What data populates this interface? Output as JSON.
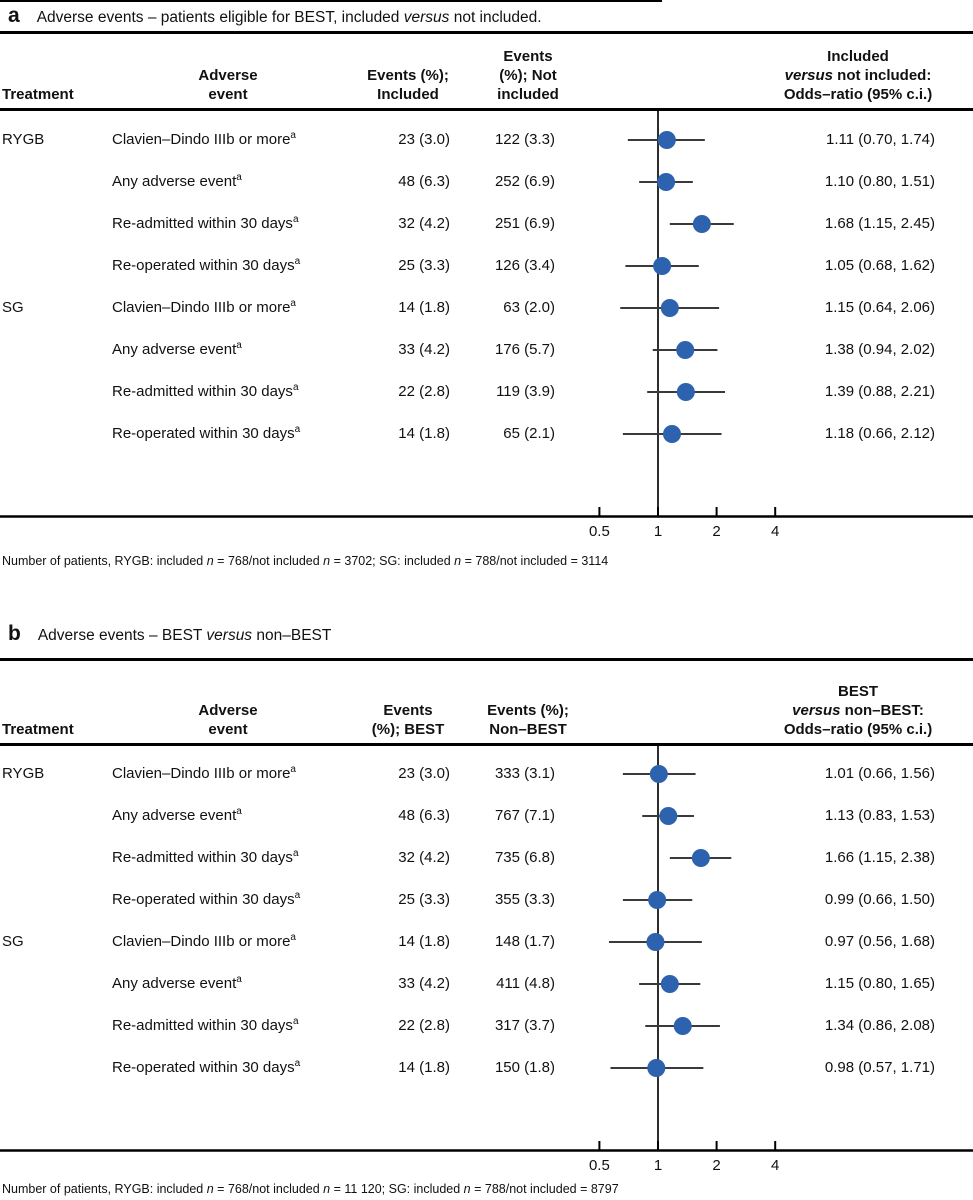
{
  "figure": {
    "background": "#ffffff",
    "dot_color": "#2d63ae",
    "ci_line_color": "#3a3a3a",
    "rule_color": "#000000",
    "text_color": "#111111"
  },
  "axis": {
    "ticks": [
      "0.5",
      "1",
      "2",
      "4"
    ],
    "tick_values": [
      0.5,
      1,
      2,
      4
    ],
    "reference_value": 1
  },
  "panels": [
    {
      "label": "a",
      "title_segments": [
        {
          "t": "Adverse events – patients eligible for BEST, included "
        },
        {
          "t": "versus",
          "i": true
        },
        {
          "t": " not included."
        }
      ],
      "columns": {
        "treatment": [
          [
            {
              "t": "Treatment"
            }
          ]
        ],
        "adverse": [
          [
            {
              "t": "Adverse"
            }
          ],
          [
            {
              "t": "event"
            }
          ]
        ],
        "col3": [
          [
            {
              "t": "Events (%);"
            }
          ],
          [
            {
              "t": "Included"
            }
          ]
        ],
        "col4": [
          [
            {
              "t": "Events"
            }
          ],
          [
            {
              "t": "(%); Not"
            }
          ],
          [
            {
              "t": "included"
            }
          ]
        ],
        "or": [
          [
            {
              "t": "Included"
            }
          ],
          [
            {
              "t": "versus",
              "i": true
            },
            {
              "t": " not included:"
            }
          ],
          [
            {
              "t": "Odds–ratio (95% c.i.)"
            }
          ]
        ]
      },
      "rows": [
        {
          "treatment": "RYGB",
          "event": [
            {
              "t": "Clavien–Dindo IIIb or more"
            },
            {
              "t": "a",
              "sup": true
            }
          ],
          "included": "23 (3.0)",
          "other": "122 (3.3)",
          "or_text": "1.11 (0.70, 1.74)",
          "or": 1.11,
          "lo": 0.7,
          "hi": 1.74
        },
        {
          "treatment": "",
          "event": [
            {
              "t": "Any adverse event"
            },
            {
              "t": "a",
              "sup": true
            }
          ],
          "included": "48 (6.3)",
          "other": "252 (6.9)",
          "or_text": "1.10 (0.80, 1.51)",
          "or": 1.1,
          "lo": 0.8,
          "hi": 1.51
        },
        {
          "treatment": "",
          "event": [
            {
              "t": "Re-admitted within 30 days"
            },
            {
              "t": "a",
              "sup": true
            }
          ],
          "included": "32 (4.2)",
          "other": "251 (6.9)",
          "or_text": "1.68 (1.15, 2.45)",
          "or": 1.68,
          "lo": 1.15,
          "hi": 2.45
        },
        {
          "treatment": "",
          "event": [
            {
              "t": "Re-operated within 30 days"
            },
            {
              "t": "a",
              "sup": true
            }
          ],
          "included": "25 (3.3)",
          "other": "126 (3.4)",
          "or_text": "1.05 (0.68, 1.62)",
          "or": 1.05,
          "lo": 0.68,
          "hi": 1.62
        },
        {
          "treatment": "SG",
          "event": [
            {
              "t": "Clavien–Dindo IIIb or more"
            },
            {
              "t": "a",
              "sup": true
            }
          ],
          "included": "14 (1.8)",
          "other": "63 (2.0)",
          "or_text": "1.15 (0.64, 2.06)",
          "or": 1.15,
          "lo": 0.64,
          "hi": 2.06
        },
        {
          "treatment": "",
          "event": [
            {
              "t": "Any adverse event"
            },
            {
              "t": "a",
              "sup": true
            }
          ],
          "included": "33 (4.2)",
          "other": "176 (5.7)",
          "or_text": "1.38 (0.94, 2.02)",
          "or": 1.38,
          "lo": 0.94,
          "hi": 2.02
        },
        {
          "treatment": "",
          "event": [
            {
              "t": "Re-admitted within 30 days"
            },
            {
              "t": "a",
              "sup": true
            }
          ],
          "included": "22 (2.8)",
          "other": "119 (3.9)",
          "or_text": "1.39 (0.88, 2.21)",
          "or": 1.39,
          "lo": 0.88,
          "hi": 2.21
        },
        {
          "treatment": "",
          "event": [
            {
              "t": "Re-operated within 30 days"
            },
            {
              "t": "a",
              "sup": true
            }
          ],
          "included": "14 (1.8)",
          "other": "65 (2.1)",
          "or_text": "1.18 (0.66, 2.12)",
          "or": 1.18,
          "lo": 0.66,
          "hi": 2.12
        }
      ],
      "footnote_segments": [
        {
          "t": "Number of patients, RYGB: included "
        },
        {
          "t": "n",
          "i": true
        },
        {
          "t": " = 768/not included "
        },
        {
          "t": "n",
          "i": true
        },
        {
          "t": " = 3702; SG: included "
        },
        {
          "t": "n",
          "i": true
        },
        {
          "t": " = 788/not included = 3114"
        }
      ]
    },
    {
      "label": "b",
      "title_segments": [
        {
          "t": "Adverse events – BEST "
        },
        {
          "t": "versus",
          "i": true
        },
        {
          "t": " non–BEST"
        }
      ],
      "columns": {
        "treatment": [
          [
            {
              "t": "Treatment"
            }
          ]
        ],
        "adverse": [
          [
            {
              "t": "Adverse"
            }
          ],
          [
            {
              "t": "event"
            }
          ]
        ],
        "col3": [
          [
            {
              "t": "Events"
            }
          ],
          [
            {
              "t": "(%); BEST"
            }
          ]
        ],
        "col4": [
          [
            {
              "t": "Events (%);"
            }
          ],
          [
            {
              "t": "Non–BEST"
            }
          ]
        ],
        "or": [
          [
            {
              "t": "BEST"
            }
          ],
          [
            {
              "t": "versus",
              "i": true
            },
            {
              "t": " non–BEST:"
            }
          ],
          [
            {
              "t": "Odds–ratio (95% c.i.)"
            }
          ]
        ]
      },
      "rows": [
        {
          "treatment": "RYGB",
          "event": [
            {
              "t": "Clavien–Dindo IIIb or more"
            },
            {
              "t": "a",
              "sup": true
            }
          ],
          "included": "23 (3.0)",
          "other": "333 (3.1)",
          "or_text": "1.01 (0.66, 1.56)",
          "or": 1.01,
          "lo": 0.66,
          "hi": 1.56
        },
        {
          "treatment": "",
          "event": [
            {
              "t": "Any adverse event"
            },
            {
              "t": "a",
              "sup": true
            }
          ],
          "included": "48 (6.3)",
          "other": "767 (7.1)",
          "or_text": "1.13 (0.83, 1.53)",
          "or": 1.13,
          "lo": 0.83,
          "hi": 1.53
        },
        {
          "treatment": "",
          "event": [
            {
              "t": "Re-admitted within 30 days"
            },
            {
              "t": "a",
              "sup": true
            }
          ],
          "included": "32 (4.2)",
          "other": "735 (6.8)",
          "or_text": "1.66 (1.15, 2.38)",
          "or": 1.66,
          "lo": 1.15,
          "hi": 2.38
        },
        {
          "treatment": "",
          "event": [
            {
              "t": "Re-operated within 30 days"
            },
            {
              "t": "a",
              "sup": true
            }
          ],
          "included": "25 (3.3)",
          "other": "355 (3.3)",
          "or_text": "0.99 (0.66, 1.50)",
          "or": 0.99,
          "lo": 0.66,
          "hi": 1.5
        },
        {
          "treatment": "SG",
          "event": [
            {
              "t": "Clavien–Dindo IIIb or more"
            },
            {
              "t": "a",
              "sup": true
            }
          ],
          "included": "14 (1.8)",
          "other": "148 (1.7)",
          "or_text": "0.97 (0.56, 1.68)",
          "or": 0.97,
          "lo": 0.56,
          "hi": 1.68
        },
        {
          "treatment": "",
          "event": [
            {
              "t": "Any adverse event"
            },
            {
              "t": "a",
              "sup": true
            }
          ],
          "included": "33 (4.2)",
          "other": "411 (4.8)",
          "or_text": "1.15 (0.80, 1.65)",
          "or": 1.15,
          "lo": 0.8,
          "hi": 1.65
        },
        {
          "treatment": "",
          "event": [
            {
              "t": "Re-admitted within 30 days"
            },
            {
              "t": "a",
              "sup": true
            }
          ],
          "included": "22 (2.8)",
          "other": "317 (3.7)",
          "or_text": "1.34 (0.86, 2.08)",
          "or": 1.34,
          "lo": 0.86,
          "hi": 2.08
        },
        {
          "treatment": "",
          "event": [
            {
              "t": "Re-operated within 30 days"
            },
            {
              "t": "a",
              "sup": true
            }
          ],
          "included": "14 (1.8)",
          "other": "150 (1.8)",
          "or_text": "0.98 (0.57, 1.71)",
          "or": 0.98,
          "lo": 0.57,
          "hi": 1.71
        }
      ],
      "footnote_segments": [
        {
          "t": "Number of patients, RYGB: included "
        },
        {
          "t": "n",
          "i": true
        },
        {
          "t": " = 768/not included "
        },
        {
          "t": "n",
          "i": true
        },
        {
          "t": " = 11 120; SG: included "
        },
        {
          "t": "n",
          "i": true
        },
        {
          "t": " = 788/not included = 8797"
        }
      ]
    }
  ],
  "chart_data": [
    {
      "type": "scatter",
      "subtype": "forest-plot",
      "title": "Adverse events – patients eligible for BEST, included versus not included.",
      "x_scale": "log",
      "x_ticks": [
        0.5,
        1,
        2,
        4
      ],
      "reference_line": 1,
      "legend_position": "none",
      "grid": false,
      "points": [
        {
          "treatment": "RYGB",
          "adverse_event": "Clavien–Dindo IIIb or more",
          "events_pct_included": "23 (3.0)",
          "events_pct_not_included": "122 (3.3)",
          "odds_ratio": 1.11,
          "ci_low": 0.7,
          "ci_high": 1.74
        },
        {
          "treatment": "RYGB",
          "adverse_event": "Any adverse event",
          "events_pct_included": "48 (6.3)",
          "events_pct_not_included": "252 (6.9)",
          "odds_ratio": 1.1,
          "ci_low": 0.8,
          "ci_high": 1.51
        },
        {
          "treatment": "RYGB",
          "adverse_event": "Re-admitted within 30 days",
          "events_pct_included": "32 (4.2)",
          "events_pct_not_included": "251 (6.9)",
          "odds_ratio": 1.68,
          "ci_low": 1.15,
          "ci_high": 2.45
        },
        {
          "treatment": "RYGB",
          "adverse_event": "Re-operated within 30 days",
          "events_pct_included": "25 (3.3)",
          "events_pct_not_included": "126 (3.4)",
          "odds_ratio": 1.05,
          "ci_low": 0.68,
          "ci_high": 1.62
        },
        {
          "treatment": "SG",
          "adverse_event": "Clavien–Dindo IIIb or more",
          "events_pct_included": "14 (1.8)",
          "events_pct_not_included": "63 (2.0)",
          "odds_ratio": 1.15,
          "ci_low": 0.64,
          "ci_high": 2.06
        },
        {
          "treatment": "SG",
          "adverse_event": "Any adverse event",
          "events_pct_included": "33 (4.2)",
          "events_pct_not_included": "176 (5.7)",
          "odds_ratio": 1.38,
          "ci_low": 0.94,
          "ci_high": 2.02
        },
        {
          "treatment": "SG",
          "adverse_event": "Re-admitted within 30 days",
          "events_pct_included": "22 (2.8)",
          "events_pct_not_included": "119 (3.9)",
          "odds_ratio": 1.39,
          "ci_low": 0.88,
          "ci_high": 2.21
        },
        {
          "treatment": "SG",
          "adverse_event": "Re-operated within 30 days",
          "events_pct_included": "14 (1.8)",
          "events_pct_not_included": "65 (2.1)",
          "odds_ratio": 1.18,
          "ci_low": 0.66,
          "ci_high": 2.12
        }
      ],
      "footnote": "Number of patients, RYGB: included n = 768/not included n = 3702; SG: included n = 788/not included = 3114"
    },
    {
      "type": "scatter",
      "subtype": "forest-plot",
      "title": "Adverse events – BEST versus non–BEST",
      "x_scale": "log",
      "x_ticks": [
        0.5,
        1,
        2,
        4
      ],
      "reference_line": 1,
      "legend_position": "none",
      "grid": false,
      "points": [
        {
          "treatment": "RYGB",
          "adverse_event": "Clavien–Dindo IIIb or more",
          "events_pct_best": "23 (3.0)",
          "events_pct_non_best": "333 (3.1)",
          "odds_ratio": 1.01,
          "ci_low": 0.66,
          "ci_high": 1.56
        },
        {
          "treatment": "RYGB",
          "adverse_event": "Any adverse event",
          "events_pct_best": "48 (6.3)",
          "events_pct_non_best": "767 (7.1)",
          "odds_ratio": 1.13,
          "ci_low": 0.83,
          "ci_high": 1.53
        },
        {
          "treatment": "RYGB",
          "adverse_event": "Re-admitted within 30 days",
          "events_pct_best": "32 (4.2)",
          "events_pct_non_best": "735 (6.8)",
          "odds_ratio": 1.66,
          "ci_low": 1.15,
          "ci_high": 2.38
        },
        {
          "treatment": "RYGB",
          "adverse_event": "Re-operated within 30 days",
          "events_pct_best": "25 (3.3)",
          "events_pct_non_best": "355 (3.3)",
          "odds_ratio": 0.99,
          "ci_low": 0.66,
          "ci_high": 1.5
        },
        {
          "treatment": "SG",
          "adverse_event": "Clavien–Dindo IIIb or more",
          "events_pct_best": "14 (1.8)",
          "events_pct_non_best": "148 (1.7)",
          "odds_ratio": 0.97,
          "ci_low": 0.56,
          "ci_high": 1.68
        },
        {
          "treatment": "SG",
          "adverse_event": "Any adverse event",
          "events_pct_best": "33 (4.2)",
          "events_pct_non_best": "411 (4.8)",
          "odds_ratio": 1.15,
          "ci_low": 0.8,
          "ci_high": 1.65
        },
        {
          "treatment": "SG",
          "adverse_event": "Re-admitted within 30 days",
          "events_pct_best": "22 (2.8)",
          "events_pct_non_best": "317 (3.7)",
          "odds_ratio": 1.34,
          "ci_low": 0.86,
          "ci_high": 2.08
        },
        {
          "treatment": "SG",
          "adverse_event": "Re-operated within 30 days",
          "events_pct_best": "14 (1.8)",
          "events_pct_non_best": "150 (1.8)",
          "odds_ratio": 0.98,
          "ci_low": 0.57,
          "ci_high": 1.71
        }
      ],
      "footnote": "Number of patients, RYGB: included n = 768/not included n = 11 120; SG: included n = 788/not included = 8797"
    }
  ]
}
